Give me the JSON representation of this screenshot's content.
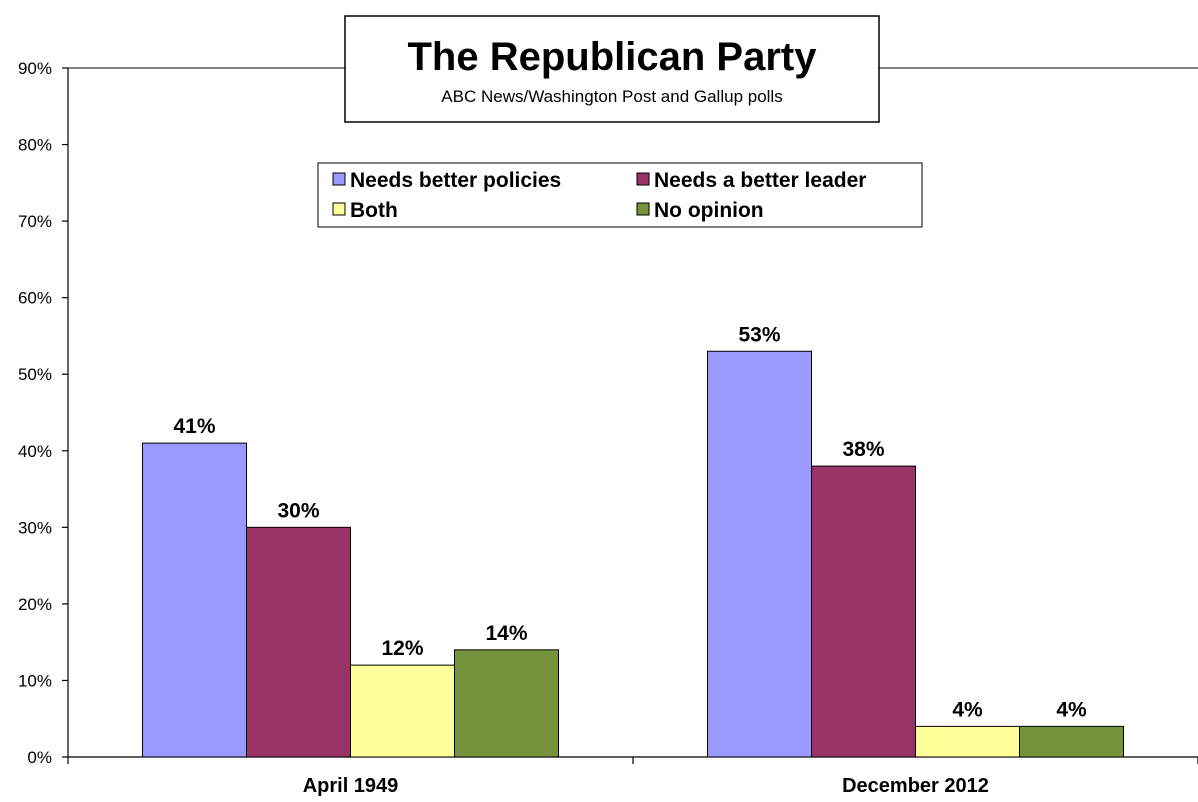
{
  "chart_data": {
    "type": "bar",
    "title": "The Republican Party",
    "subtitle": "ABC News/Washington Post and Gallup polls",
    "categories": [
      "April 1949",
      "December 2012"
    ],
    "series": [
      {
        "name": "Needs better policies",
        "color": "#9999ff",
        "values": [
          41,
          53
        ],
        "labels": [
          "41%",
          "53%"
        ]
      },
      {
        "name": "Needs a better leader",
        "color": "#993366",
        "values": [
          30,
          38
        ],
        "labels": [
          "30%",
          "38%"
        ]
      },
      {
        "name": "Both",
        "color": "#ffff99",
        "values": [
          12,
          4
        ],
        "labels": [
          "12%",
          "4%"
        ]
      },
      {
        "name": "No opinion",
        "color": "#77933c",
        "values": [
          14,
          4
        ],
        "labels": [
          "14%",
          "4%"
        ]
      }
    ],
    "yticks": [
      "0%",
      "10%",
      "20%",
      "30%",
      "40%",
      "50%",
      "60%",
      "70%",
      "80%",
      "90%"
    ],
    "ylim": [
      0,
      90
    ],
    "xlabel": "",
    "ylabel": "",
    "grid": false,
    "legend_position": "top-center"
  }
}
